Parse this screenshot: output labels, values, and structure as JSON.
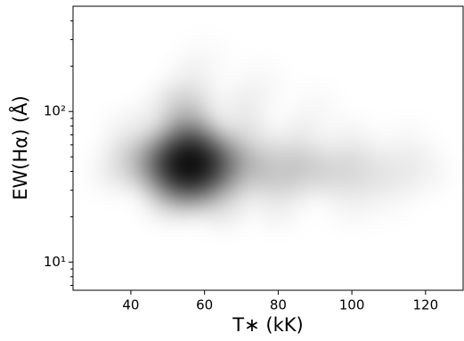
{
  "chart_data": {
    "type": "density",
    "xlabel": "T∗ (kK)",
    "ylabel": "EW(Hα) (Å)",
    "xlim": [
      24.3,
      130.2
    ],
    "xticks": [
      40,
      60,
      80,
      100,
      120
    ],
    "ylim": [
      6.5,
      500
    ],
    "ylog": true,
    "yticks": [
      {
        "value": 10,
        "label": "10¹"
      },
      {
        "value": 100,
        "label": "10²"
      }
    ],
    "yminorticks": [
      7,
      8,
      9,
      20,
      30,
      40,
      50,
      60,
      70,
      80,
      90,
      200,
      300,
      400
    ],
    "color": "#000000",
    "x": [
      56,
      52,
      60,
      56,
      56,
      50,
      62,
      50,
      62,
      56,
      56,
      46,
      66,
      72,
      80,
      88,
      96,
      104,
      112,
      120,
      72,
      85,
      100,
      115,
      56,
      50,
      70,
      56,
      75,
      90,
      40,
      40,
      35,
      60,
      80,
      100,
      65,
      50,
      110
    ],
    "y": [
      45,
      45,
      45,
      38,
      55,
      55,
      55,
      36,
      36,
      70,
      30,
      45,
      45,
      40,
      40,
      40,
      40,
      40,
      40,
      40,
      60,
      60,
      60,
      60,
      100,
      100,
      100,
      150,
      150,
      100,
      45,
      70,
      40,
      220,
      25,
      25,
      25,
      27,
      28
    ],
    "density": [
      1.0,
      0.8,
      0.8,
      0.85,
      0.8,
      0.5,
      0.5,
      0.5,
      0.5,
      0.45,
      0.45,
      0.4,
      0.4,
      0.3,
      0.28,
      0.25,
      0.2,
      0.15,
      0.1,
      0.08,
      0.2,
      0.15,
      0.1,
      0.06,
      0.25,
      0.15,
      0.12,
      0.1,
      0.06,
      0.06,
      0.2,
      0.12,
      0.08,
      0.04,
      0.12,
      0.08,
      0.2,
      0.2,
      0.05
    ]
  }
}
